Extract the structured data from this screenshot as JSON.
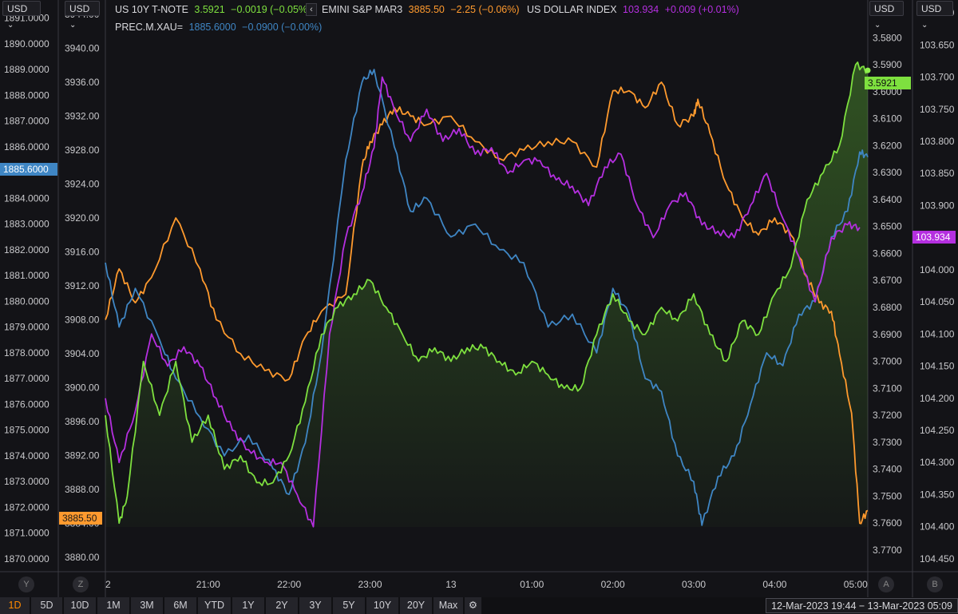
{
  "header": {
    "currency_left_1": "USD",
    "currency_left_2": "USD",
    "currency_right_1": "USD",
    "currency_right_2": "USD",
    "dropdown_glyph": "⌄",
    "collapse_glyph": "‹",
    "gear_glyph": "⚙"
  },
  "legend": [
    {
      "name": "US 10Y T-NOTE",
      "value": "3.5921",
      "change": "−0.0019 (−0.05%)",
      "color": "#7ee03f"
    },
    {
      "name": "EMINI S&P MAR3",
      "value": "3885.50",
      "change": "−2.25 (−0.06%)",
      "color": "#ff9a2e"
    },
    {
      "name": "US DOLLAR INDEX",
      "value": "103.934",
      "change": "+0.009 (+0.01%)",
      "color": "#b52fe0"
    },
    {
      "name": "PREC.M.XAU=",
      "value": "1885.6000",
      "change": "−0.0900 (−0.00%)",
      "color": "#3f86c4"
    }
  ],
  "axis_letters": {
    "y": "Y",
    "z": "Z",
    "a": "A",
    "b": "B"
  },
  "tags": {
    "gold_last": "1885.6000",
    "sp_last": "3885.50",
    "tnote_last": "3.5921",
    "dxy_last": "103.934"
  },
  "toolbar": {
    "periods": [
      "1D",
      "5D",
      "10D",
      "1M",
      "3M",
      "6M",
      "YTD",
      "1Y",
      "2Y",
      "3Y",
      "5Y",
      "10Y",
      "20Y",
      "Max"
    ],
    "active": "1D",
    "range_text": "12-Mar-2023 19:44 − 13-Mar-2023 05:09"
  },
  "chart_data": {
    "type": "line",
    "x_ticks": [
      "2",
      "21:00",
      "22:00",
      "23:00",
      "13",
      "01:00",
      "02:00",
      "03:00",
      "04:00",
      "05:00"
    ],
    "x_tick_hours": [
      19.9,
      21.0,
      22.0,
      23.0,
      24.0,
      25.0,
      26.0,
      27.0,
      28.0,
      29.0
    ],
    "x_range": [
      19.73,
      29.15
    ],
    "axes": {
      "Y": {
        "ticks": [
          "1891.0000",
          "1890.0000",
          "1889.0000",
          "1888.0000",
          "1887.0000",
          "1886.0000",
          "1885.0000",
          "1884.0000",
          "1883.0000",
          "1882.0000",
          "1881.0000",
          "1880.0000",
          "1879.0000",
          "1878.0000",
          "1877.0000",
          "1876.0000",
          "1875.0000",
          "1874.0000",
          "1873.0000",
          "1872.0000",
          "1871.0000",
          "1870.0000"
        ],
        "range": [
          1869.5,
          1891.7
        ]
      },
      "Z": {
        "ticks": [
          "3944.00",
          "3940.00",
          "3936.00",
          "3932.00",
          "3928.00",
          "3924.00",
          "3920.00",
          "3916.00",
          "3912.00",
          "3908.00",
          "3904.00",
          "3900.00",
          "3896.00",
          "3892.00",
          "3888.00",
          "3884.00",
          "3880.00"
        ],
        "range": [
          3878.3,
          3945.7
        ]
      },
      "A": {
        "ticks": [
          "3.5700",
          "3.5800",
          "3.5900",
          "3.6000",
          "3.6100",
          "3.6200",
          "3.6300",
          "3.6400",
          "3.6500",
          "3.6600",
          "3.6700",
          "3.6800",
          "3.6900",
          "3.7000",
          "3.7100",
          "3.7200",
          "3.7300",
          "3.7400",
          "3.7500",
          "3.7600",
          "3.7700"
        ],
        "range": [
          3.566,
          3.778
        ],
        "inverted": true
      },
      "B": {
        "ticks": [
          "103.600",
          "103.650",
          "103.700",
          "103.750",
          "103.800",
          "103.850",
          "103.900",
          "103.950",
          "104.000",
          "104.050",
          "104.100",
          "104.150",
          "104.200",
          "104.250",
          "104.300",
          "104.350",
          "104.400",
          "104.450"
        ],
        "range": [
          103.58,
          104.47
        ],
        "inverted": true
      }
    },
    "series": [
      {
        "name": "PREC.M.XAU=",
        "axis": "Y",
        "color": "#3f86c4",
        "x": [
          19.73,
          19.9,
          20.1,
          20.4,
          20.6,
          20.9,
          21.2,
          21.5,
          21.8,
          22.0,
          22.2,
          22.4,
          22.7,
          22.9,
          23.05,
          23.3,
          23.5,
          23.7,
          24.0,
          24.3,
          24.6,
          24.9,
          25.2,
          25.5,
          25.8,
          26.0,
          26.2,
          26.4,
          26.6,
          26.8,
          27.0,
          27.1,
          27.3,
          27.5,
          27.7,
          27.9,
          28.1,
          28.3,
          28.5,
          28.7,
          28.9,
          29.05,
          29.15
        ],
        "y": [
          1881.5,
          1879.0,
          1880.5,
          1878.5,
          1877.0,
          1875.5,
          1874.0,
          1874.8,
          1873.5,
          1872.5,
          1874.5,
          1878.0,
          1885.5,
          1888.5,
          1889.0,
          1886.0,
          1883.5,
          1884.0,
          1882.5,
          1883.0,
          1882.0,
          1881.5,
          1879.0,
          1879.5,
          1878.0,
          1880.5,
          1879.5,
          1877.0,
          1876.5,
          1874.0,
          1873.0,
          1871.3,
          1873.2,
          1874.0,
          1876.0,
          1878.0,
          1877.5,
          1879.5,
          1880.0,
          1882.5,
          1883.5,
          1885.8,
          1885.6
        ]
      },
      {
        "name": "EMINI S&P MAR3",
        "axis": "Z",
        "color": "#ff9a2e",
        "x": [
          19.73,
          19.9,
          20.1,
          20.3,
          20.6,
          20.9,
          21.1,
          21.4,
          21.7,
          22.0,
          22.2,
          22.4,
          22.7,
          22.9,
          23.0,
          23.15,
          23.3,
          23.5,
          23.7,
          24.0,
          24.3,
          24.6,
          24.9,
          25.2,
          25.5,
          25.8,
          26.0,
          26.2,
          26.4,
          26.6,
          26.8,
          27.0,
          27.05,
          27.2,
          27.4,
          27.6,
          27.8,
          28.0,
          28.2,
          28.4,
          28.55,
          28.7,
          28.8,
          28.95,
          29.05,
          29.15
        ],
        "y": [
          3908,
          3914,
          3910,
          3913,
          3920,
          3914,
          3908,
          3904,
          3902,
          3901,
          3906,
          3909,
          3911,
          3926,
          3929,
          3931,
          3933,
          3932,
          3931,
          3932,
          3929,
          3927,
          3928,
          3929,
          3929,
          3926,
          3935,
          3935,
          3933,
          3936,
          3931,
          3932,
          3934,
          3930,
          3924,
          3920,
          3918,
          3920,
          3918,
          3913,
          3910,
          3909,
          3904,
          3897,
          3884,
          3885.5
        ]
      },
      {
        "name": "US 10Y T-NOTE",
        "axis": "A",
        "color": "#7ee03f",
        "x": [
          19.73,
          19.9,
          20.0,
          20.2,
          20.4,
          20.6,
          20.8,
          21.0,
          21.2,
          21.4,
          21.6,
          21.8,
          22.0,
          22.2,
          22.4,
          22.6,
          22.8,
          23.0,
          23.2,
          23.4,
          23.6,
          23.8,
          24.0,
          24.2,
          24.4,
          24.6,
          24.8,
          25.0,
          25.2,
          25.4,
          25.6,
          25.8,
          26.0,
          26.2,
          26.4,
          26.6,
          26.8,
          27.0,
          27.2,
          27.4,
          27.6,
          27.8,
          28.0,
          28.2,
          28.4,
          28.6,
          28.8,
          29.0,
          29.15
        ],
        "y": [
          3.72,
          3.76,
          3.75,
          3.7,
          3.72,
          3.7,
          3.73,
          3.72,
          3.74,
          3.735,
          3.745,
          3.745,
          3.735,
          3.715,
          3.69,
          3.68,
          3.675,
          3.67,
          3.68,
          3.69,
          3.7,
          3.695,
          3.7,
          3.695,
          3.695,
          3.7,
          3.705,
          3.7,
          3.705,
          3.71,
          3.71,
          3.69,
          3.675,
          3.685,
          3.69,
          3.68,
          3.685,
          3.675,
          3.69,
          3.7,
          3.685,
          3.69,
          3.675,
          3.665,
          3.64,
          3.63,
          3.62,
          3.59,
          3.5921
        ]
      },
      {
        "name": "US DOLLAR INDEX",
        "axis": "B",
        "color": "#b52fe0",
        "x": [
          19.73,
          19.9,
          20.1,
          20.3,
          20.5,
          20.7,
          20.9,
          21.1,
          21.3,
          21.5,
          21.7,
          21.9,
          22.1,
          22.3,
          22.5,
          22.7,
          22.9,
          23.05,
          23.15,
          23.3,
          23.5,
          23.7,
          23.9,
          24.1,
          24.3,
          24.5,
          24.7,
          24.9,
          25.1,
          25.3,
          25.5,
          25.7,
          25.9,
          26.1,
          26.3,
          26.5,
          26.7,
          26.9,
          27.1,
          27.3,
          27.5,
          27.7,
          27.9,
          28.1,
          28.3,
          28.5,
          28.7,
          28.9,
          29.05
        ],
        "y": [
          104.2,
          104.3,
          104.22,
          104.1,
          104.15,
          104.12,
          104.15,
          104.2,
          104.25,
          104.28,
          104.3,
          104.3,
          104.35,
          104.4,
          104.1,
          103.95,
          103.88,
          103.81,
          103.7,
          103.75,
          103.8,
          103.75,
          103.8,
          103.78,
          103.82,
          103.81,
          103.85,
          103.83,
          103.83,
          103.86,
          103.87,
          103.9,
          103.84,
          103.82,
          103.9,
          103.95,
          103.9,
          103.88,
          103.93,
          103.94,
          103.95,
          103.9,
          103.85,
          103.92,
          103.98,
          104.05,
          103.95,
          103.93,
          103.934
        ]
      }
    ]
  }
}
